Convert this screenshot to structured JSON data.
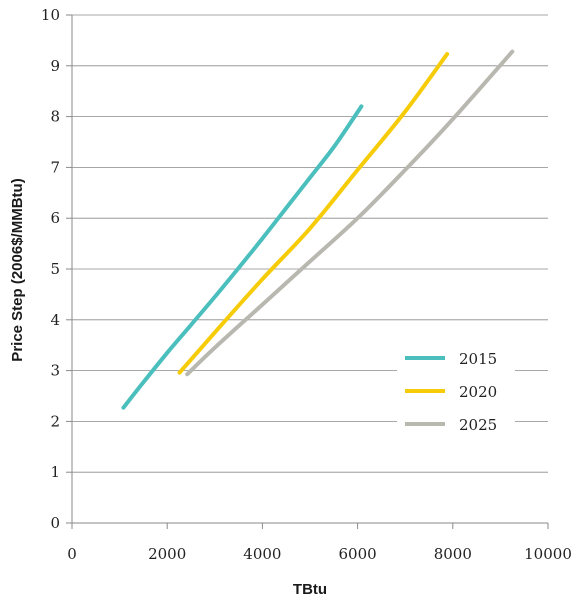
{
  "chart_data": {
    "type": "line",
    "title": "",
    "xlabel": "TBtu",
    "ylabel": "Price Step (2006$/MMBtu)",
    "xlim": [
      0,
      10000
    ],
    "ylim": [
      0,
      10
    ],
    "x_ticks": [
      0,
      2000,
      4000,
      6000,
      8000,
      10000
    ],
    "y_ticks": [
      0,
      1,
      2,
      3,
      4,
      5,
      6,
      7,
      8,
      9,
      10
    ],
    "x_tick_labels": [
      "0",
      "2000",
      "4000",
      "6000",
      "8000",
      "10000"
    ],
    "y_tick_labels": [
      "0",
      "1",
      "2",
      "3",
      "4",
      "5",
      "6",
      "7",
      "8",
      "9",
      "10"
    ],
    "grid": "horizontal",
    "legend_position": "lower-right",
    "series": [
      {
        "name": "2015",
        "color": "#4bbfbd",
        "x": [
          1080,
          1500,
          2000,
          2500,
          3000,
          3500,
          4000,
          4500,
          5000,
          5500,
          6080
        ],
        "y": [
          2.27,
          2.77,
          3.35,
          3.9,
          4.45,
          5.02,
          5.6,
          6.2,
          6.8,
          7.4,
          8.2
        ]
      },
      {
        "name": "2020",
        "color": "#f6cb08",
        "x": [
          2260,
          3000,
          4000,
          5000,
          6000,
          7000,
          7880
        ],
        "y": [
          2.96,
          3.75,
          4.8,
          5.8,
          6.95,
          8.1,
          9.23
        ]
      },
      {
        "name": "2025",
        "color": "#b9b8b0",
        "x": [
          2420,
          3000,
          4000,
          5000,
          6000,
          7000,
          8000,
          9250
        ],
        "y": [
          2.93,
          3.45,
          4.3,
          5.15,
          6.0,
          6.95,
          7.95,
          9.28
        ]
      }
    ]
  }
}
